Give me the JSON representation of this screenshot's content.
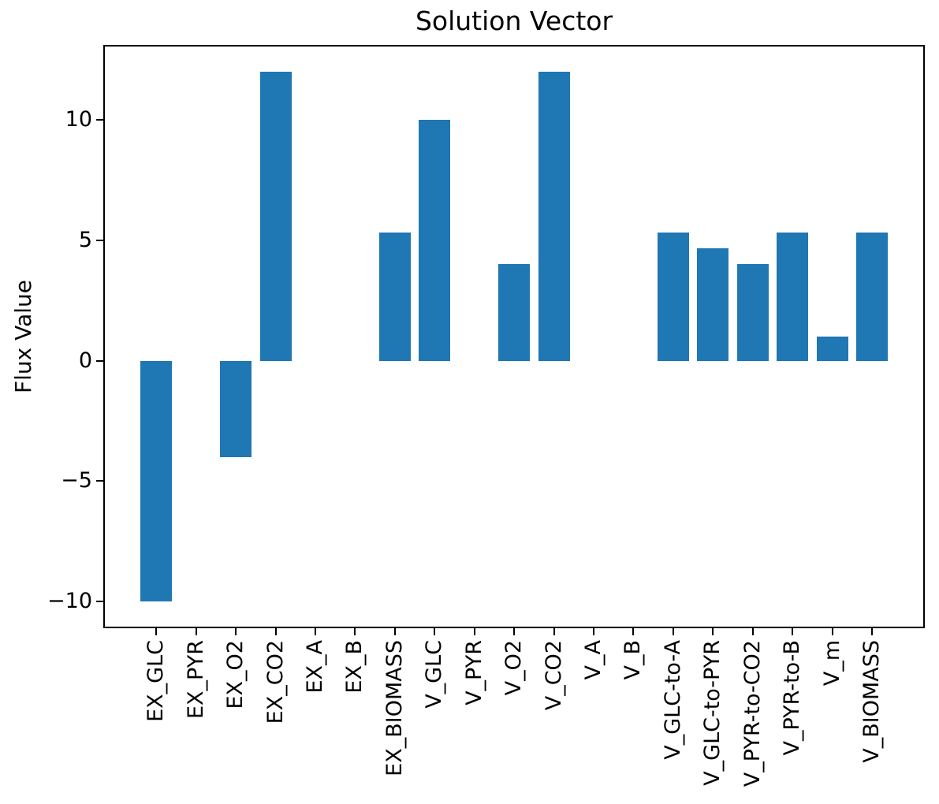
{
  "figure": {
    "background_color": "#ffffff",
    "spine_color": "#000000",
    "text_color": "#000000"
  },
  "chart_data": {
    "type": "bar",
    "title": "Solution Vector",
    "xlabel": "",
    "ylabel": "Flux Value",
    "categories": [
      "EX_GLC",
      "EX_PYR",
      "EX_O2",
      "EX_CO2",
      "EX_A",
      "EX_B",
      "EX_BIOMASS",
      "V_GLC",
      "V_PYR",
      "V_O2",
      "V_CO2",
      "V_A",
      "V_B",
      "V_GLC-to-A",
      "V_GLC-to-PYR",
      "V_PYR-to-CO2",
      "V_PYR-to-B",
      "V_m",
      "V_BIOMASS"
    ],
    "values": [
      -10.0,
      0.0,
      -4.0,
      12.0,
      0.0,
      0.0,
      5.33,
      10.0,
      0.0,
      4.0,
      12.0,
      0.0,
      0.0,
      5.33,
      4.67,
      4.0,
      5.33,
      1.0,
      5.33
    ],
    "yticks": [
      -10,
      -5,
      0,
      5,
      10
    ],
    "ylim": [
      -11.1,
      13.1
    ],
    "bar_color": "#1f77b4",
    "grid": false,
    "legend": null
  }
}
